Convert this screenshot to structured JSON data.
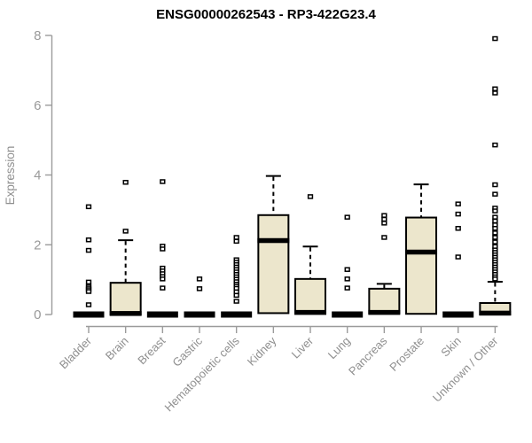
{
  "chart_data": {
    "type": "boxplot",
    "title": "ENSG00000262543 - RP3-422G23.4",
    "ylabel": "Expression",
    "xlabel": "",
    "ylim": [
      0,
      8
    ],
    "yticks": [
      0,
      2,
      4,
      6,
      8
    ],
    "grid": false,
    "legend_position": "none",
    "x_tick_rotation": -45,
    "categories": [
      "Bladder",
      "Brain",
      "Breast",
      "Gastric",
      "Hematopoietic cells",
      "Kidney",
      "Liver",
      "Lung",
      "Pancreas",
      "Prostate",
      "Skin",
      "Unknown / Other"
    ],
    "series": [
      {
        "name": "Bladder",
        "q1": 0,
        "median": 0,
        "q3": 0,
        "whisker_low": 0,
        "whisker_high": 0,
        "outliers": [
          3.09,
          2.14,
          1.84,
          0.93,
          0.81,
          0.76,
          0.71,
          0.66,
          0.28
        ]
      },
      {
        "name": "Brain",
        "q1": 0,
        "median": 0.03,
        "q3": 0.91,
        "whisker_low": 0,
        "whisker_high": 2.13,
        "outliers": [
          3.79,
          2.39
        ]
      },
      {
        "name": "Breast",
        "q1": 0,
        "median": 0,
        "q3": 0,
        "whisker_low": 0,
        "whisker_high": 0,
        "outliers": [
          3.81,
          1.96,
          1.88,
          1.33,
          1.25,
          1.17,
          1.09,
          1.02,
          0.76
        ]
      },
      {
        "name": "Gastric",
        "q1": 0,
        "median": 0,
        "q3": 0,
        "whisker_low": 0,
        "whisker_high": 0,
        "outliers": [
          1.02,
          0.74
        ]
      },
      {
        "name": "Hematopoietic cells",
        "q1": 0,
        "median": 0,
        "q3": 0,
        "whisker_low": 0,
        "whisker_high": 0,
        "outliers": [
          2.21,
          2.1,
          1.57,
          1.5,
          1.43,
          1.36,
          1.29,
          1.22,
          1.15,
          1.08,
          1.01,
          0.94,
          0.87,
          0.81,
          0.75,
          0.65,
          0.55,
          0.38
        ]
      },
      {
        "name": "Kidney",
        "q1": 0.04,
        "median": 2.12,
        "q3": 2.85,
        "whisker_low": 0.04,
        "whisker_high": 3.97,
        "outliers": []
      },
      {
        "name": "Liver",
        "q1": 0.04,
        "median": 0.06,
        "q3": 1.02,
        "whisker_low": 0.04,
        "whisker_high": 1.95,
        "outliers": [
          3.38
        ]
      },
      {
        "name": "Lung",
        "q1": 0,
        "median": 0,
        "q3": 0,
        "whisker_low": 0,
        "whisker_high": 0,
        "outliers": [
          2.79,
          1.29,
          1.02,
          0.76
        ]
      },
      {
        "name": "Pancreas",
        "q1": 0.04,
        "median": 0.06,
        "q3": 0.74,
        "whisker_low": 0.04,
        "whisker_high": 0.88,
        "outliers": [
          2.84,
          2.73,
          2.62,
          2.21
        ]
      },
      {
        "name": "Prostate",
        "q1": 0.02,
        "median": 1.79,
        "q3": 2.78,
        "whisker_low": 0.02,
        "whisker_high": 3.73,
        "outliers": []
      },
      {
        "name": "Skin",
        "q1": 0,
        "median": 0,
        "q3": 0,
        "whisker_low": 0,
        "whisker_high": 0,
        "outliers": [
          3.17,
          2.88,
          2.47,
          1.65
        ]
      },
      {
        "name": "Unknown / Other",
        "q1": 0,
        "median": 0.04,
        "q3": 0.33,
        "whisker_low": 0,
        "whisker_high": 0.94,
        "outliers": [
          7.91,
          6.47,
          6.35,
          4.86,
          3.72,
          3.45,
          3.05,
          2.97,
          2.79,
          2.68,
          2.57,
          2.47,
          2.34,
          2.21,
          2.08,
          1.95,
          1.85,
          1.78,
          1.71,
          1.64,
          1.57,
          1.5,
          1.43,
          1.36,
          1.29,
          1.22,
          1.15,
          1.08,
          1.02
        ]
      }
    ],
    "colors": {
      "box_fill": "#ECE6CC",
      "box_stroke": "#000000",
      "median": "#000000",
      "whisker": "#000000",
      "outlier_stroke": "#000000",
      "outlier_fill": "#ffffff",
      "axis": "#9b9b9b",
      "tick_label": "#8f8f8f",
      "title": "#000000",
      "background": "#ffffff"
    }
  }
}
